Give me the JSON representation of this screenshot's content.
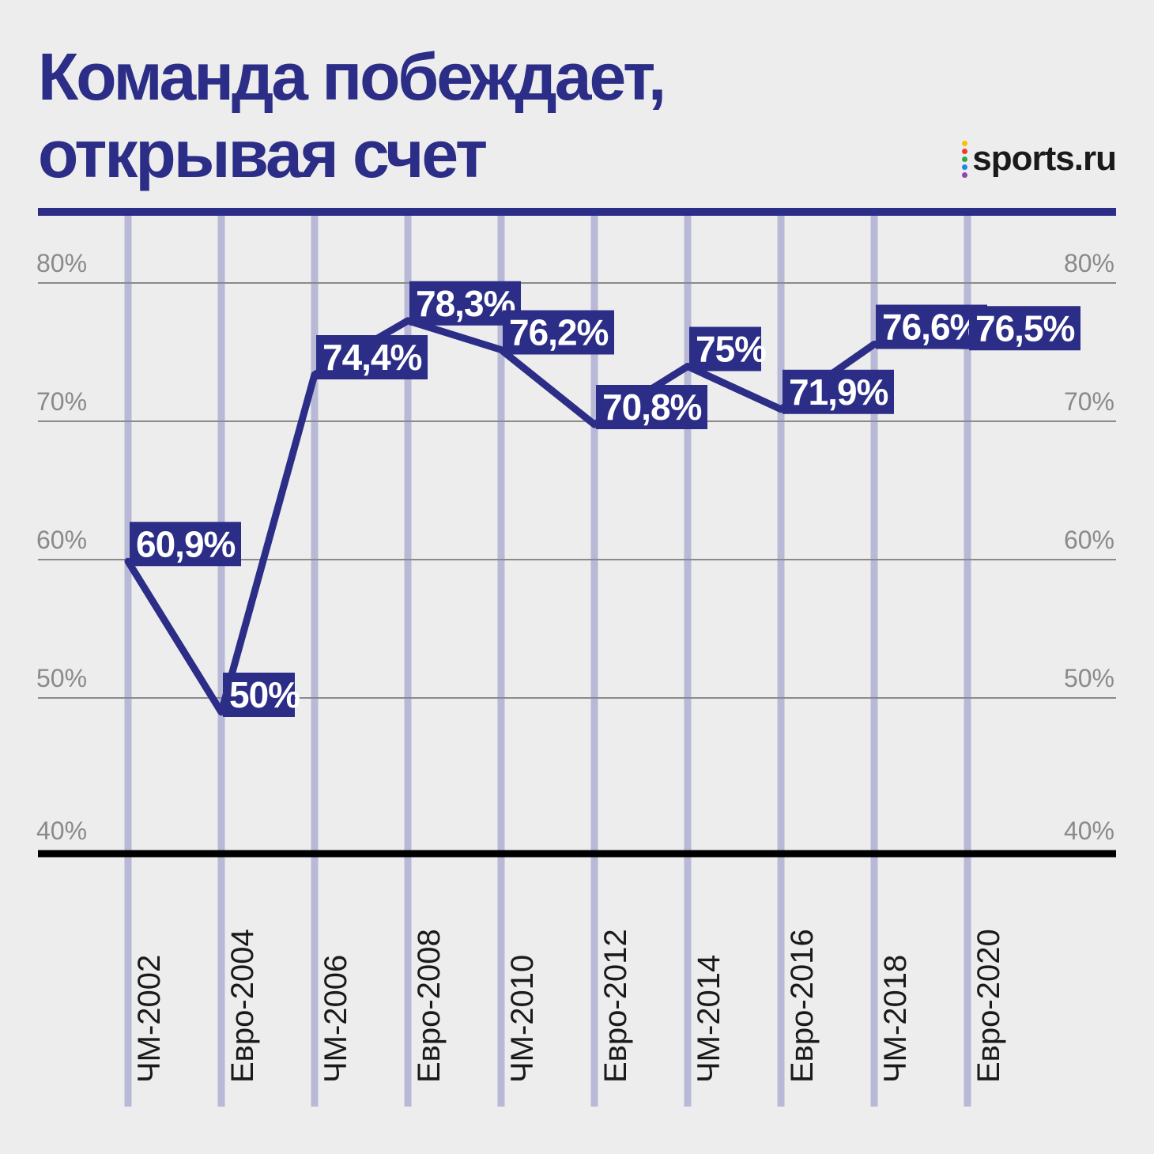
{
  "header": {
    "title_line1": "Команда побеждает,",
    "title_line2": "открывая счет",
    "brand": "sports.ru"
  },
  "colors": {
    "accent": "#2b2d87",
    "vertical_grid": "#b8b9d6",
    "background": "#ededed",
    "brand_dots": [
      "#f5c400",
      "#e8402f",
      "#2fa84f",
      "#1e88e5",
      "#8e44ad"
    ]
  },
  "chart_data": {
    "type": "line",
    "title": "Команда побеждает, открывая счет",
    "categories": [
      "ЧМ-2002",
      "Евро-2004",
      "ЧМ-2006",
      "Евро-2008",
      "ЧМ-2010",
      "Евро-2012",
      "ЧМ-2014",
      "Евро-2016",
      "ЧМ-2018",
      "Евро-2020"
    ],
    "values": [
      60.9,
      50,
      74.4,
      78.3,
      76.2,
      70.8,
      75,
      71.9,
      76.6,
      76.5
    ],
    "data_labels": [
      "60,9%",
      "50%",
      "74,4%",
      "78,3%",
      "76,2%",
      "70,8%",
      "75%",
      "71,9%",
      "76,6%",
      "76,5%"
    ],
    "ylim": [
      40,
      83
    ],
    "yticks": [
      80,
      70,
      60,
      50,
      40
    ],
    "ytick_labels": [
      "80%",
      "70%",
      "60%",
      "50%",
      "40%"
    ],
    "y_axis": "both sides",
    "grid": true,
    "xlabel": "",
    "ylabel": ""
  }
}
